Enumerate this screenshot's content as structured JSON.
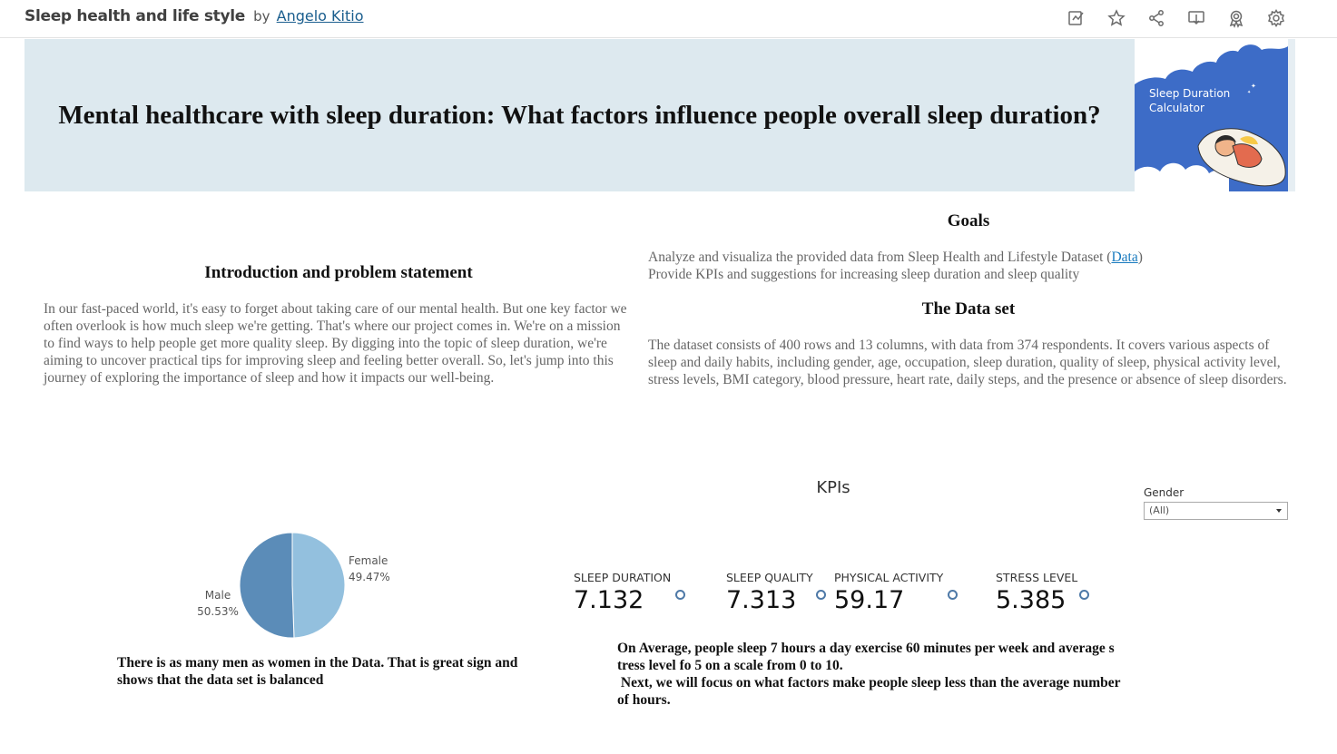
{
  "header": {
    "workbook_title": "Sleep health and life style",
    "by": "by",
    "author": "Angelo Kitio",
    "toolbar_icons": [
      "edit-icon",
      "star-icon",
      "share-icon",
      "download-icon",
      "badge-icon",
      "gear-icon"
    ]
  },
  "banner": {
    "title": "Mental healthcare with sleep duration: What factors influence people overall sleep duration?",
    "image_text": "Sleep Duration Calculator",
    "image_color": "#3d6cc7"
  },
  "intro": {
    "heading": "Introduction and problem statement",
    "text": "In our fast-paced world, it's easy to forget about taking care of our mental health. But one key factor we often overlook is how much sleep we're getting. That's where our project comes in. We're on a mission to find ways to help people get more quality sleep. By digging into the topic of sleep duration, we're aiming to uncover practical tips for improving sleep and feeling better overall. So, let's jump into this journey of exploring the importance of sleep and how it impacts our well-being."
  },
  "goals": {
    "heading": "Goals",
    "line1_prefix": "Analyze and visualiza the provided data from Sleep Health and Lifestyle Dataset (",
    "line1_link": "Data",
    "line1_suffix": ")",
    "line2": "Provide KPIs and suggestions for increasing sleep duration and sleep quality"
  },
  "dataset": {
    "heading": "The Data set",
    "text": "The dataset consists of 400 rows and 13 columns, with data from 374 respondents. It covers various aspects of sleep and daily habits, including gender, age, occupation, sleep duration, quality of sleep, physical activity level, stress levels, BMI category, blood pressure, heart rate, daily steps, and the presence or absence of sleep disorders."
  },
  "kpis": {
    "title": "KPIs",
    "filter_label": "Gender",
    "filter_value": "(All)",
    "items": [
      {
        "label": "SLEEP DURATION",
        "value": "7.132"
      },
      {
        "label": "SLEEP QUALITY",
        "value": "7.313"
      },
      {
        "label": "PHYSICAL ACTIVITY",
        "value": "59.17"
      },
      {
        "label": "STRESS LEVEL",
        "value": "5.385"
      }
    ],
    "dot_color": "#4e79a7",
    "note_line1": "On Average, people sleep 7 hours a day exercise 60 minutes per week and average s",
    "note_line2": "tress level fo 5 on a scale from 0 to 10.",
    "note_line3": " Next, we will focus on what factors make people sleep less than the average number",
    "note_line4": "of hours."
  },
  "pie": {
    "note": "There is as many men as women in the Data. That is great sign and shows that the data set is balanced"
  },
  "chart_data": {
    "type": "pie",
    "categories": [
      "Female",
      "Male"
    ],
    "values": [
      49.47,
      50.53
    ],
    "value_labels": [
      "49.47%",
      "50.53%"
    ],
    "colors": [
      "#93c0de",
      "#5b8cb8"
    ]
  }
}
